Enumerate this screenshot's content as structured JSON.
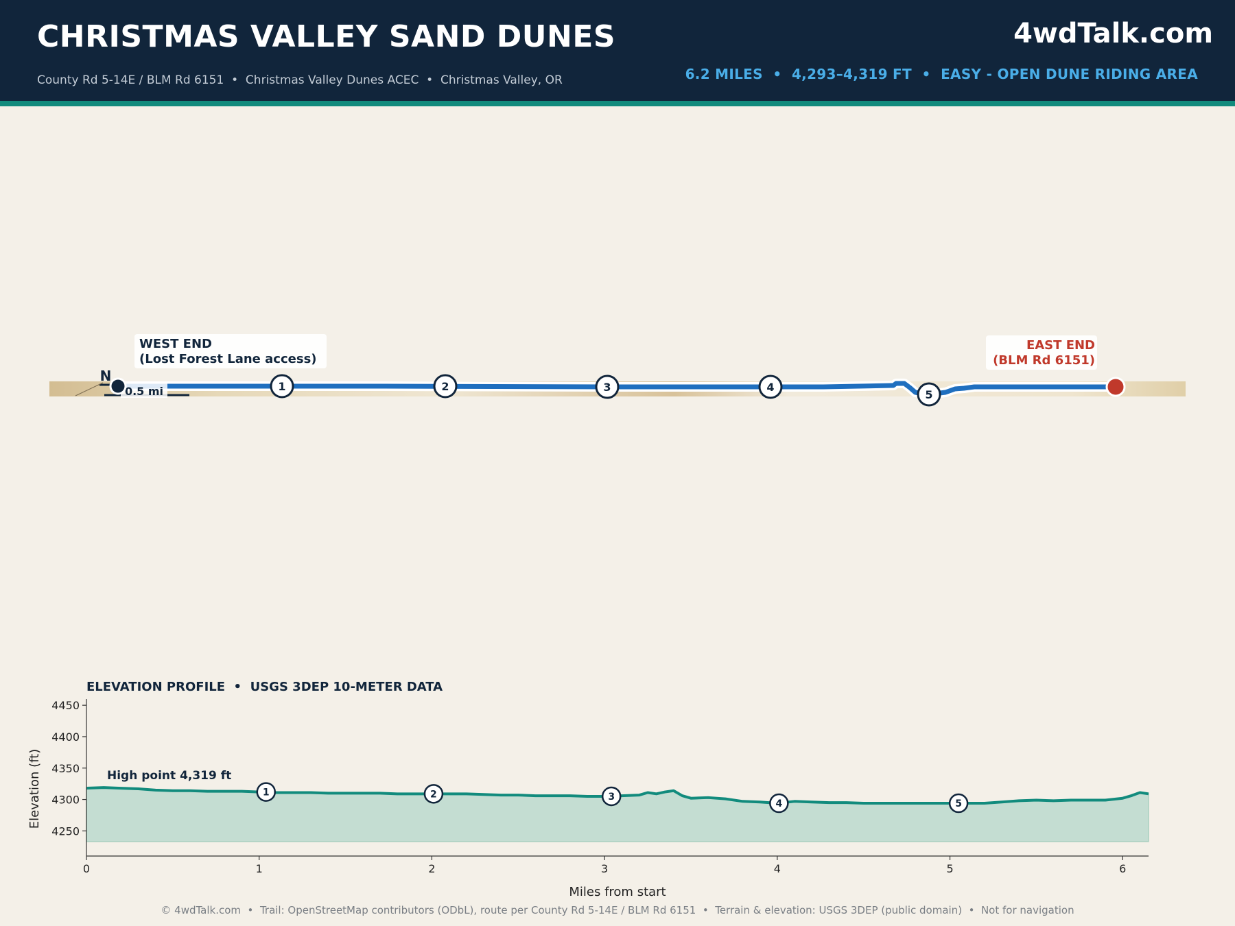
{
  "header": {
    "title": "CHRISTMAS VALLEY SAND DUNES",
    "subtitle": "County Rd 5-14E / BLM Rd 6151  •  Christmas Valley Dunes ACEC  •  Christmas Valley, OR",
    "brand": "4wdTalk.com",
    "stats": "6.2 MILES  •  4,293–4,319 FT  •  EASY - OPEN DUNE RIDING AREA"
  },
  "colors": {
    "header_bg": "#11253b",
    "accent": "#128b7d",
    "stats_text": "#4aaee8",
    "route": "#1f6fbf",
    "end_marker": "#c0392b",
    "elevation_line": "#128b7d",
    "elevation_fill": "#c4ddd2"
  },
  "map": {
    "north_label": "N",
    "scale_label": "0.5 mi",
    "start_label_line1": "WEST END",
    "start_label_line2": "(Lost Forest Lane access)",
    "end_label_line1": "EAST END",
    "end_label_line2": "(BLM Rd 6151)",
    "waypoints": [
      "1",
      "2",
      "3",
      "4",
      "5"
    ]
  },
  "chart_data": {
    "type": "area",
    "title": "ELEVATION PROFILE  •  USGS 3DEP 10-METER DATA",
    "xlabel": "Miles from start",
    "ylabel": "Elevation (ft)",
    "xlim": [
      0,
      6.15
    ],
    "ylim": [
      4210,
      4460
    ],
    "fill_base": 4233,
    "xticks": [
      0,
      1,
      2,
      3,
      4,
      5,
      6
    ],
    "yticks": [
      4250,
      4300,
      4350,
      4400,
      4450
    ],
    "annotation": "High point 4,319 ft",
    "x": [
      0,
      0.1,
      0.2,
      0.3,
      0.4,
      0.5,
      0.6,
      0.7,
      0.8,
      0.9,
      1.0,
      1.1,
      1.2,
      1.3,
      1.4,
      1.5,
      1.6,
      1.7,
      1.8,
      1.9,
      2.0,
      2.1,
      2.2,
      2.3,
      2.4,
      2.5,
      2.6,
      2.7,
      2.8,
      2.9,
      3.0,
      3.1,
      3.2,
      3.25,
      3.3,
      3.35,
      3.4,
      3.45,
      3.5,
      3.6,
      3.7,
      3.8,
      3.9,
      4.0,
      4.1,
      4.2,
      4.3,
      4.4,
      4.5,
      4.6,
      4.7,
      4.8,
      4.9,
      5.0,
      5.1,
      5.2,
      5.3,
      5.4,
      5.5,
      5.6,
      5.7,
      5.8,
      5.9,
      6.0,
      6.05,
      6.1,
      6.15
    ],
    "y": [
      4318,
      4319,
      4318,
      4317,
      4315,
      4314,
      4314,
      4313,
      4313,
      4313,
      4312,
      4311,
      4311,
      4311,
      4310,
      4310,
      4310,
      4310,
      4309,
      4309,
      4309,
      4309,
      4309,
      4308,
      4307,
      4307,
      4306,
      4306,
      4306,
      4305,
      4305,
      4306,
      4307,
      4311,
      4309,
      4312,
      4314,
      4306,
      4302,
      4303,
      4301,
      4297,
      4296,
      4294,
      4297,
      4296,
      4295,
      4295,
      4294,
      4294,
      4294,
      4294,
      4294,
      4294,
      4294,
      4294,
      4296,
      4298,
      4299,
      4298,
      4299,
      4299,
      4299,
      4302,
      4306,
      4311,
      4309
    ],
    "waypoints": [
      {
        "label": "1",
        "x": 1.04,
        "y": 4312
      },
      {
        "label": "2",
        "x": 2.01,
        "y": 4309
      },
      {
        "label": "3",
        "x": 3.04,
        "y": 4305
      },
      {
        "label": "4",
        "x": 4.01,
        "y": 4294
      },
      {
        "label": "5",
        "x": 5.05,
        "y": 4294
      }
    ]
  },
  "footer": "© 4wdTalk.com  •  Trail: OpenStreetMap contributors (ODbL), route per County Rd 5-14E / BLM Rd 6151  •  Terrain & elevation: USGS 3DEP (public domain)  •  Not for navigation"
}
